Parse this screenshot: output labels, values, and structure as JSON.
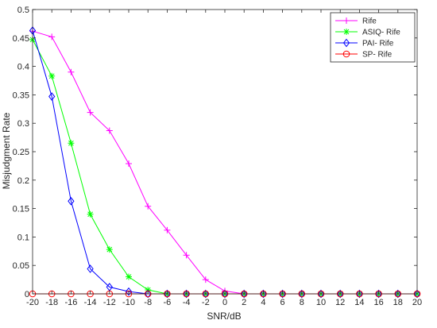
{
  "chart_data": {
    "type": "line",
    "title": "",
    "xlabel": "SNR/dB",
    "ylabel": "Misjudgment Rate",
    "xlim": [
      -20,
      20
    ],
    "ylim": [
      0,
      0.5
    ],
    "x_ticks": [
      -20,
      -18,
      -16,
      -14,
      -12,
      -10,
      -8,
      -6,
      -4,
      -2,
      0,
      2,
      4,
      6,
      8,
      10,
      12,
      14,
      16,
      18,
      20
    ],
    "y_ticks": [
      0,
      0.05,
      0.1,
      0.15,
      0.2,
      0.25,
      0.3,
      0.35,
      0.4,
      0.45,
      0.5
    ],
    "grid": false,
    "legend_position": "top-right",
    "x": [
      -20,
      -18,
      -16,
      -14,
      -12,
      -10,
      -8,
      -6,
      -4,
      -2,
      0,
      2,
      4,
      6,
      8,
      10,
      12,
      14,
      16,
      18,
      20
    ],
    "series": [
      {
        "name": "Rife",
        "color": "#ff00ff",
        "marker": "plus",
        "values": [
          0.462,
          0.452,
          0.39,
          0.319,
          0.287,
          0.229,
          0.154,
          0.112,
          0.068,
          0.025,
          0.005,
          0,
          0,
          0,
          0,
          0,
          0,
          0,
          0,
          0,
          0
        ]
      },
      {
        "name": "ASIQ- Rife",
        "color": "#00ff00",
        "marker": "asterisk",
        "values": [
          0.447,
          0.383,
          0.265,
          0.14,
          0.078,
          0.03,
          0.007,
          0,
          0,
          0,
          0,
          0,
          0,
          0,
          0,
          0,
          0,
          0,
          0,
          0,
          0
        ]
      },
      {
        "name": "PAI- Rife",
        "color": "#0000ff",
        "marker": "diamond",
        "values": [
          0.463,
          0.347,
          0.163,
          0.044,
          0.012,
          0.004,
          0,
          0,
          0,
          0,
          0,
          0,
          0,
          0,
          0,
          0,
          0,
          0,
          0,
          0,
          0
        ]
      },
      {
        "name": "SP- Rife",
        "color": "#ff0000",
        "marker": "circle",
        "values": [
          0,
          0,
          0,
          0,
          0,
          0,
          0,
          0,
          0,
          0,
          0,
          0,
          0,
          0,
          0,
          0,
          0,
          0,
          0,
          0,
          0
        ]
      }
    ]
  }
}
